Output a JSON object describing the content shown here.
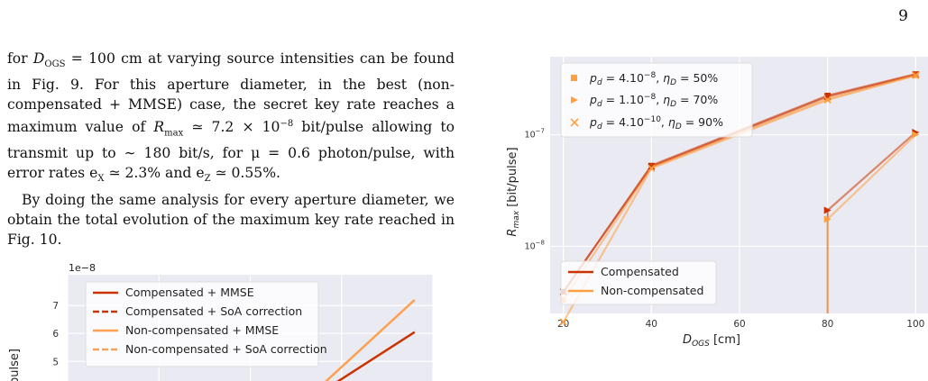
{
  "page_number": "9",
  "paragraph1": {
    "pre": "for ",
    "math1": "D",
    "math1_sub": "OGS",
    "text": " = 100 cm at varying source intensities can be found in Fig. 9. For this aperture diameter, in the best (non-compensated + MMSE) case, the secret key rate reaches a maximum value of ",
    "rmax": "R",
    "rmax_sub": "max",
    "rmax_val": " ≃ 7.2 × 10",
    "rmax_exp": "−8",
    "tail": " bit/pulse allowing to transmit up to ∼ 180 bit/s, for μ = 0.6 photon/pulse, with error rates e",
    "ex_sub": "X",
    "ex_val": " ≃ 2.3% and e",
    "ez_sub": "Z",
    "ez_val": " ≃ 0.55%."
  },
  "paragraph2": "By doing the same analysis for every aperture diameter, we obtain the total evolution of the maximum key rate reached in Fig. 10.",
  "chart_data": [
    {
      "type": "line",
      "xlabel": "D_OGS [cm]",
      "ylabel": "R_max [bit/pulse]",
      "x_ticks": [
        "20",
        "40",
        "60",
        "80",
        "100"
      ],
      "y_ticks": [
        "10^-7",
        "10^-8"
      ],
      "yscale": "log",
      "xlim": [
        17,
        103
      ],
      "ylim": [
        2.5e-09,
        5e-07
      ],
      "grid": true,
      "legend_marker_placement": "top-left",
      "legend_line_placement": "bottom-left",
      "legend_markers": [
        {
          "label": "p_d = 4.10^-8, η_D = 50%",
          "marker": "square",
          "color": "#ff9f3f"
        },
        {
          "label": "p_d = 1.10^-8, η_D = 70%",
          "marker": "triangle",
          "color": "#ff9f3f"
        },
        {
          "label": "p_d = 4.10^-10, η_D = 90%",
          "marker": "x",
          "color": "#ff9f3f"
        }
      ],
      "legend_lines": [
        {
          "label": "Compensated",
          "color": "#cc3300"
        },
        {
          "label": "Non-compensated",
          "color": "#ff9f3f"
        }
      ],
      "series": [
        {
          "name": "Compensated",
          "marker": "square",
          "color": "#cc3300",
          "x": [
            20,
            40,
            80,
            100
          ],
          "y": [
            3.9e-09,
            5.3e-08,
            2.25e-07,
            3.5e-07
          ]
        },
        {
          "name": "Non-compensated",
          "marker": "square",
          "color": "#ff9f3f",
          "x": [
            20,
            40,
            80,
            100
          ],
          "y": [
            3.3e-09,
            5.1e-08,
            2.1e-07,
            3.4e-07
          ]
        },
        {
          "name": "Compensated",
          "marker": "triangle",
          "color": "#cc3300",
          "x": [
            80,
            100
          ],
          "y": [
            2.1e-08,
            1.05e-07
          ]
        },
        {
          "name": "Non-compensated",
          "marker": "triangle",
          "color": "#ff9f3f",
          "x": [
            80,
            100
          ],
          "y": [
            1.75e-08,
            1e-07
          ]
        },
        {
          "name": "Compensated",
          "marker": "x",
          "color": "#cc3300",
          "x": [
            20,
            40,
            80,
            100
          ],
          "y": [
            3.9e-09,
            5.2e-08,
            2.2e-07,
            3.45e-07
          ]
        },
        {
          "name": "Non-compensated",
          "marker": "x",
          "color": "#ff9f3f",
          "x": [
            20,
            40,
            80,
            100
          ],
          "y": [
            2.1e-09,
            5e-08,
            2.05e-07,
            3.4e-07
          ]
        }
      ]
    },
    {
      "type": "line",
      "offset_text": "1e−8",
      "ylabel_visible": "pulse]",
      "y_ticks": [
        "7",
        "6",
        "5"
      ],
      "ylim": [
        4.3,
        8.1
      ],
      "xlim": [
        0,
        10
      ],
      "grid": true,
      "legend_placement": "top-left",
      "series": [
        {
          "name": "Compensated + MMSE",
          "color": "#cc3300",
          "style": "solid",
          "x": [
            7.3,
            9.5
          ],
          "y": [
            4.2,
            6.05
          ]
        },
        {
          "name": "Compensated + SoA correction",
          "color": "#cc3300",
          "style": "dashed",
          "x": [],
          "y": []
        },
        {
          "name": "Non-compensated + MMSE",
          "color": "#ffa050",
          "style": "solid",
          "x": [
            7.0,
            9.5
          ],
          "y": [
            4.2,
            7.2
          ]
        },
        {
          "name": "Non-compensated + SoA correction",
          "color": "#ffa050",
          "style": "dashed",
          "x": [],
          "y": []
        }
      ]
    }
  ]
}
